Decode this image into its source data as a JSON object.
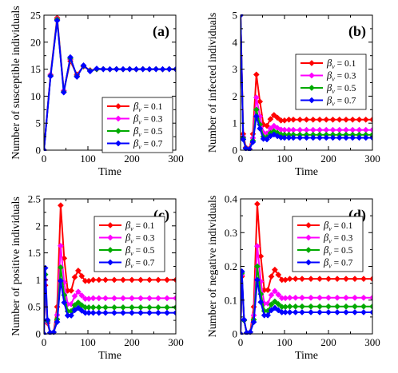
{
  "chart_data": [
    {
      "type": "line",
      "panel_label": "(a)",
      "xlabel": "Time",
      "ylabel": "Number of susceptible individuals",
      "xlim": [
        0,
        300
      ],
      "ylim": [
        0,
        25
      ],
      "xticks": [
        "0",
        "100",
        "200",
        "300"
      ],
      "yticks": [
        "0",
        "5",
        "10",
        "15",
        "20",
        "25"
      ],
      "legend_position": "center-right",
      "series": [
        {
          "name": "β_v = 0.1",
          "color": "#ff0000",
          "x": [
            0,
            15,
            30,
            45,
            60,
            75,
            90,
            105,
            120,
            135,
            150,
            165,
            180,
            195,
            210,
            225,
            240,
            255,
            270,
            285,
            300
          ],
          "y": [
            0,
            14,
            24.5,
            11,
            16.5,
            14,
            15.5,
            14.8,
            15,
            15,
            15,
            15,
            15,
            15,
            15,
            15,
            15,
            15,
            15,
            15,
            15
          ]
        },
        {
          "name": "β_v = 0.3",
          "color": "#ff00ff",
          "x": [
            0,
            15,
            30,
            45,
            60,
            75,
            90,
            105,
            120,
            135,
            150,
            165,
            180,
            195,
            210,
            225,
            240,
            255,
            270,
            285,
            300
          ],
          "y": [
            0,
            14,
            24.3,
            11,
            16.8,
            13.8,
            15.6,
            14.7,
            15,
            15,
            15,
            15,
            15,
            15,
            15,
            15,
            15,
            15,
            15,
            15,
            15
          ]
        },
        {
          "name": "β_v = 0.5",
          "color": "#00aa00",
          "x": [
            0,
            15,
            30,
            45,
            60,
            75,
            90,
            105,
            120,
            135,
            150,
            165,
            180,
            195,
            210,
            225,
            240,
            255,
            270,
            285,
            300
          ],
          "y": [
            0,
            13.8,
            24.2,
            10.8,
            17,
            13.7,
            15.6,
            14.7,
            15,
            15,
            15,
            15,
            15,
            15,
            15,
            15,
            15,
            15,
            15,
            15,
            15
          ]
        },
        {
          "name": "β_v = 0.7",
          "color": "#0000ff",
          "x": [
            0,
            15,
            30,
            45,
            60,
            75,
            90,
            105,
            120,
            135,
            150,
            165,
            180,
            195,
            210,
            225,
            240,
            255,
            270,
            285,
            300
          ],
          "y": [
            0,
            13.7,
            24,
            10.7,
            17.2,
            13.6,
            15.7,
            14.6,
            15.1,
            15,
            15,
            15,
            15,
            15,
            15,
            15,
            15,
            15,
            15,
            15,
            15
          ]
        }
      ]
    },
    {
      "type": "line",
      "panel_label": "(b)",
      "xlabel": "Time",
      "ylabel": "Number of infected individuals",
      "xlim": [
        0,
        300
      ],
      "ylim": [
        0,
        5
      ],
      "xticks": [
        "0",
        "100",
        "200",
        "300"
      ],
      "yticks": [
        "0",
        "1",
        "2",
        "3",
        "4",
        "5"
      ],
      "legend_position": "top-right",
      "series": [
        {
          "name": "β_v = 0.1",
          "color": "#ff0000",
          "x": [
            0,
            6,
            12,
            20,
            28,
            36,
            44,
            52,
            60,
            68,
            76,
            84,
            92,
            100,
            110,
            120,
            135,
            150,
            165,
            180,
            195,
            210,
            225,
            240,
            255,
            270,
            285,
            300
          ],
          "y": [
            5,
            0.6,
            0.1,
            0.05,
            0.6,
            2.8,
            1.8,
            0.95,
            0.9,
            1.15,
            1.3,
            1.2,
            1.1,
            1.1,
            1.13,
            1.13,
            1.13,
            1.13,
            1.13,
            1.13,
            1.13,
            1.13,
            1.13,
            1.13,
            1.13,
            1.13,
            1.13,
            1.13
          ]
        },
        {
          "name": "β_v = 0.3",
          "color": "#ff00ff",
          "x": [
            0,
            6,
            12,
            20,
            28,
            36,
            44,
            52,
            60,
            68,
            76,
            84,
            92,
            100,
            110,
            120,
            135,
            150,
            165,
            180,
            195,
            210,
            225,
            240,
            255,
            270,
            285,
            300
          ],
          "y": [
            5,
            0.5,
            0.08,
            0.04,
            0.45,
            1.95,
            1.25,
            0.65,
            0.62,
            0.8,
            0.9,
            0.82,
            0.76,
            0.75,
            0.75,
            0.75,
            0.75,
            0.75,
            0.75,
            0.75,
            0.75,
            0.75,
            0.75,
            0.75,
            0.75,
            0.75,
            0.75,
            0.75
          ]
        },
        {
          "name": "β_v = 0.5",
          "color": "#00aa00",
          "x": [
            0,
            6,
            12,
            20,
            28,
            36,
            44,
            52,
            60,
            68,
            76,
            84,
            92,
            100,
            110,
            120,
            135,
            150,
            165,
            180,
            195,
            210,
            225,
            240,
            255,
            270,
            285,
            300
          ],
          "y": [
            5,
            0.45,
            0.07,
            0.03,
            0.35,
            1.5,
            0.95,
            0.5,
            0.48,
            0.63,
            0.7,
            0.64,
            0.58,
            0.57,
            0.57,
            0.57,
            0.57,
            0.57,
            0.57,
            0.57,
            0.57,
            0.57,
            0.57,
            0.57,
            0.57,
            0.57,
            0.57,
            0.57
          ]
        },
        {
          "name": "β_v = 0.7",
          "color": "#0000ff",
          "x": [
            0,
            6,
            12,
            20,
            28,
            36,
            44,
            52,
            60,
            68,
            76,
            84,
            92,
            100,
            110,
            120,
            135,
            150,
            165,
            180,
            195,
            210,
            225,
            240,
            255,
            270,
            285,
            300
          ],
          "y": [
            5,
            0.4,
            0.06,
            0.03,
            0.3,
            1.25,
            0.8,
            0.42,
            0.4,
            0.52,
            0.58,
            0.52,
            0.47,
            0.46,
            0.46,
            0.46,
            0.46,
            0.46,
            0.46,
            0.46,
            0.46,
            0.46,
            0.46,
            0.46,
            0.46,
            0.46,
            0.46,
            0.46
          ]
        }
      ]
    },
    {
      "type": "line",
      "panel_label": "(c)",
      "xlabel": "Time",
      "ylabel": "Number of positive individuals",
      "xlim": [
        0,
        300
      ],
      "ylim": [
        0,
        2.5
      ],
      "xticks": [
        "0",
        "100",
        "200",
        "300"
      ],
      "yticks": [
        "0",
        "0.5",
        "1",
        "1.5",
        "2",
        "2.5"
      ],
      "legend_position": "top-right",
      "series": [
        {
          "name": "β_v = 0.1",
          "color": "#ff0000",
          "x": [
            0,
            3,
            8,
            14,
            22,
            30,
            38,
            46,
            54,
            62,
            70,
            78,
            86,
            94,
            102,
            112,
            125,
            140,
            160,
            180,
            200,
            220,
            240,
            260,
            280,
            300
          ],
          "y": [
            0,
            0.9,
            0.2,
            0.02,
            0.03,
            0.5,
            2.38,
            1.4,
            0.8,
            0.8,
            1.05,
            1.17,
            1.07,
            0.98,
            0.98,
            1.0,
            1.0,
            1.0,
            1.0,
            1.0,
            1.0,
            1.0,
            1.0,
            1.0,
            1.0,
            1.0
          ]
        },
        {
          "name": "β_v = 0.3",
          "color": "#ff00ff",
          "x": [
            0,
            3,
            8,
            14,
            22,
            30,
            38,
            46,
            54,
            62,
            70,
            78,
            86,
            94,
            102,
            112,
            125,
            140,
            160,
            180,
            200,
            220,
            240,
            260,
            280,
            300
          ],
          "y": [
            0,
            1.0,
            0.22,
            0.02,
            0.03,
            0.35,
            1.63,
            0.95,
            0.55,
            0.55,
            0.7,
            0.78,
            0.71,
            0.65,
            0.65,
            0.66,
            0.66,
            0.66,
            0.66,
            0.66,
            0.66,
            0.66,
            0.66,
            0.66,
            0.66,
            0.66
          ]
        },
        {
          "name": "β_v = 0.5",
          "color": "#00aa00",
          "x": [
            0,
            3,
            8,
            14,
            22,
            30,
            38,
            46,
            54,
            62,
            70,
            78,
            86,
            94,
            102,
            112,
            125,
            140,
            160,
            180,
            200,
            220,
            240,
            260,
            280,
            300
          ],
          "y": [
            0,
            1.1,
            0.24,
            0.02,
            0.03,
            0.27,
            1.23,
            0.72,
            0.42,
            0.42,
            0.53,
            0.58,
            0.53,
            0.49,
            0.49,
            0.49,
            0.49,
            0.49,
            0.49,
            0.49,
            0.49,
            0.49,
            0.49,
            0.49,
            0.49,
            0.49
          ]
        },
        {
          "name": "β_v = 0.7",
          "color": "#0000ff",
          "x": [
            0,
            3,
            8,
            14,
            22,
            30,
            38,
            46,
            54,
            62,
            70,
            78,
            86,
            94,
            102,
            112,
            125,
            140,
            160,
            180,
            200,
            220,
            240,
            260,
            280,
            300
          ],
          "y": [
            0,
            1.22,
            0.26,
            0.02,
            0.03,
            0.22,
            0.98,
            0.58,
            0.34,
            0.34,
            0.44,
            0.48,
            0.43,
            0.39,
            0.39,
            0.39,
            0.39,
            0.39,
            0.39,
            0.39,
            0.39,
            0.39,
            0.39,
            0.39,
            0.39,
            0.39
          ]
        }
      ]
    },
    {
      "type": "line",
      "panel_label": "(d)",
      "xlabel": "Time",
      "ylabel": "Number of negative individuals",
      "xlim": [
        0,
        300
      ],
      "ylim": [
        0,
        0.4
      ],
      "xticks": [
        "0",
        "100",
        "200",
        "300"
      ],
      "yticks": [
        "0",
        "0.1",
        "0.2",
        "0.3",
        "0.4"
      ],
      "legend_position": "top-right",
      "series": [
        {
          "name": "β_v = 0.1",
          "color": "#ff0000",
          "x": [
            0,
            3,
            8,
            14,
            22,
            30,
            38,
            46,
            54,
            62,
            70,
            78,
            86,
            94,
            102,
            112,
            125,
            140,
            160,
            180,
            200,
            220,
            240,
            260,
            280,
            300
          ],
          "y": [
            0,
            0.17,
            0.04,
            0.003,
            0.005,
            0.08,
            0.385,
            0.23,
            0.13,
            0.13,
            0.17,
            0.19,
            0.175,
            0.16,
            0.16,
            0.163,
            0.163,
            0.163,
            0.163,
            0.163,
            0.163,
            0.163,
            0.163,
            0.163,
            0.163,
            0.163
          ]
        },
        {
          "name": "β_v = 0.3",
          "color": "#ff00ff",
          "x": [
            0,
            3,
            8,
            14,
            22,
            30,
            38,
            46,
            54,
            62,
            70,
            78,
            86,
            94,
            102,
            112,
            125,
            140,
            160,
            180,
            200,
            220,
            240,
            260,
            280,
            300
          ],
          "y": [
            0,
            0.175,
            0.04,
            0.003,
            0.005,
            0.055,
            0.26,
            0.155,
            0.09,
            0.09,
            0.115,
            0.127,
            0.116,
            0.106,
            0.106,
            0.107,
            0.107,
            0.107,
            0.107,
            0.107,
            0.107,
            0.107,
            0.107,
            0.107,
            0.107,
            0.107
          ]
        },
        {
          "name": "β_v = 0.5",
          "color": "#00aa00",
          "x": [
            0,
            3,
            8,
            14,
            22,
            30,
            38,
            46,
            54,
            62,
            70,
            78,
            86,
            94,
            102,
            112,
            125,
            140,
            160,
            180,
            200,
            220,
            240,
            260,
            280,
            300
          ],
          "y": [
            0,
            0.18,
            0.04,
            0.003,
            0.005,
            0.042,
            0.2,
            0.118,
            0.068,
            0.068,
            0.087,
            0.096,
            0.088,
            0.08,
            0.08,
            0.081,
            0.081,
            0.081,
            0.081,
            0.081,
            0.081,
            0.081,
            0.081,
            0.081,
            0.081,
            0.081
          ]
        },
        {
          "name": "β_v = 0.7",
          "color": "#0000ff",
          "x": [
            0,
            3,
            8,
            14,
            22,
            30,
            38,
            46,
            54,
            62,
            70,
            78,
            86,
            94,
            102,
            112,
            125,
            140,
            160,
            180,
            200,
            220,
            240,
            260,
            280,
            300
          ],
          "y": [
            0,
            0.185,
            0.042,
            0.003,
            0.005,
            0.035,
            0.16,
            0.094,
            0.055,
            0.055,
            0.07,
            0.077,
            0.07,
            0.064,
            0.064,
            0.064,
            0.064,
            0.064,
            0.064,
            0.064,
            0.064,
            0.064,
            0.064,
            0.064,
            0.064,
            0.064
          ]
        }
      ]
    }
  ]
}
